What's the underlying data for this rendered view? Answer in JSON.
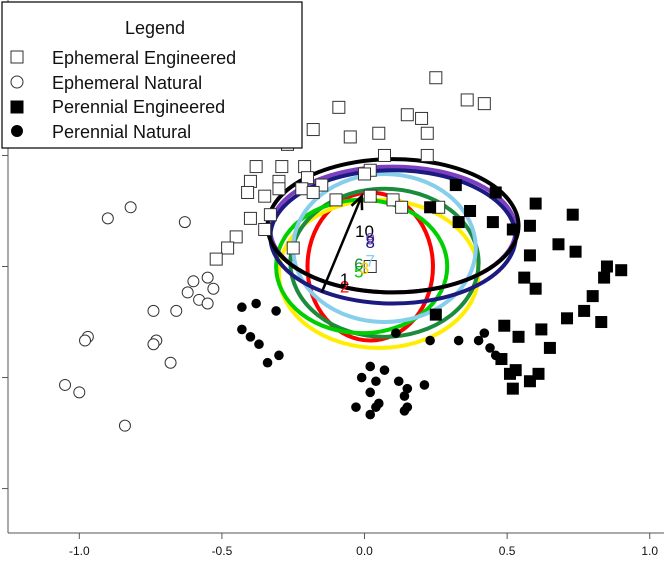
{
  "chart_data": {
    "type": "scatter",
    "title": "",
    "xlabel": "",
    "ylabel": "",
    "xlim": [
      -1.25,
      1.05
    ],
    "ylim": [
      -0.72,
      0.72
    ],
    "x_ticks": [
      -1.0,
      -0.5,
      0.0,
      0.5,
      1.0
    ],
    "x_tick_labels": [
      "-1.0",
      "-0.5",
      "0.0",
      "0.5",
      "1.0"
    ],
    "y_ticks": [
      -0.6,
      -0.3,
      0.0,
      0.3,
      0.6
    ],
    "legend": {
      "title": "Legend",
      "position": "top-left",
      "entries": [
        {
          "label": "Ephemeral Engineered",
          "marker": "open-square"
        },
        {
          "label": "Ephemeral Natural",
          "marker": "open-circle"
        },
        {
          "label": "Perennial Engineered",
          "marker": "filled-square"
        },
        {
          "label": "Perennial Natural",
          "marker": "filled-circle"
        }
      ]
    },
    "series": [
      {
        "name": "Ephemeral Engineered",
        "marker": "open-square",
        "points": [
          [
            0.25,
            0.51
          ],
          [
            0.36,
            0.45
          ],
          [
            0.42,
            0.44
          ],
          [
            -0.09,
            0.43
          ],
          [
            0.15,
            0.41
          ],
          [
            0.2,
            0.4
          ],
          [
            -0.18,
            0.37
          ],
          [
            -0.05,
            0.35
          ],
          [
            0.05,
            0.36
          ],
          [
            0.22,
            0.36
          ],
          [
            -0.27,
            0.33
          ],
          [
            0.07,
            0.3
          ],
          [
            0.22,
            0.3
          ],
          [
            -0.29,
            0.27
          ],
          [
            -0.38,
            0.27
          ],
          [
            -0.21,
            0.27
          ],
          [
            0.02,
            0.26
          ],
          [
            0.0,
            0.25
          ],
          [
            -0.4,
            0.23
          ],
          [
            -0.3,
            0.23
          ],
          [
            -0.2,
            0.24
          ],
          [
            -0.15,
            0.22
          ],
          [
            -0.41,
            0.2
          ],
          [
            -0.3,
            0.21
          ],
          [
            -0.22,
            0.21
          ],
          [
            -0.35,
            0.19
          ],
          [
            -0.18,
            0.2
          ],
          [
            0.02,
            0.19
          ],
          [
            -0.1,
            0.18
          ],
          [
            0.1,
            0.18
          ],
          [
            -0.4,
            0.13
          ],
          [
            -0.33,
            0.14
          ],
          [
            0.13,
            0.16
          ],
          [
            0.26,
            0.16
          ],
          [
            -0.45,
            0.08
          ],
          [
            -0.35,
            0.1
          ],
          [
            -0.48,
            0.05
          ],
          [
            -0.25,
            0.05
          ],
          [
            -0.52,
            0.02
          ],
          [
            0.02,
            0.0
          ]
        ]
      },
      {
        "name": "Ephemeral Natural",
        "marker": "open-circle",
        "points": [
          [
            -0.82,
            0.16
          ],
          [
            -0.9,
            0.13
          ],
          [
            -0.63,
            0.12
          ],
          [
            -0.55,
            -0.03
          ],
          [
            -0.6,
            -0.04
          ],
          [
            -0.53,
            -0.06
          ],
          [
            -0.62,
            -0.07
          ],
          [
            -0.58,
            -0.09
          ],
          [
            -0.55,
            -0.1
          ],
          [
            -0.74,
            -0.12
          ],
          [
            -0.66,
            -0.12
          ],
          [
            -0.97,
            -0.19
          ],
          [
            -0.98,
            -0.2
          ],
          [
            -0.73,
            -0.2
          ],
          [
            -0.74,
            -0.21
          ],
          [
            -0.68,
            -0.26
          ],
          [
            -1.05,
            -0.32
          ],
          [
            -1.0,
            -0.34
          ],
          [
            -0.84,
            -0.43
          ]
        ]
      },
      {
        "name": "Perennial Engineered",
        "marker": "filled-square",
        "points": [
          [
            0.32,
            0.22
          ],
          [
            0.46,
            0.2
          ],
          [
            0.6,
            0.17
          ],
          [
            0.23,
            0.16
          ],
          [
            0.37,
            0.15
          ],
          [
            0.73,
            0.14
          ],
          [
            0.33,
            0.12
          ],
          [
            0.45,
            0.12
          ],
          [
            0.58,
            0.11
          ],
          [
            0.52,
            0.1
          ],
          [
            0.68,
            0.06
          ],
          [
            0.74,
            0.04
          ],
          [
            0.58,
            0.03
          ],
          [
            0.85,
            0.0
          ],
          [
            0.9,
            -0.01
          ],
          [
            0.84,
            -0.03
          ],
          [
            0.56,
            -0.03
          ],
          [
            0.6,
            -0.06
          ],
          [
            0.8,
            -0.08
          ],
          [
            0.77,
            -0.12
          ],
          [
            0.25,
            -0.13
          ],
          [
            0.71,
            -0.14
          ],
          [
            0.83,
            -0.15
          ],
          [
            0.49,
            -0.16
          ],
          [
            0.62,
            -0.17
          ],
          [
            0.54,
            -0.19
          ],
          [
            0.65,
            -0.22
          ],
          [
            0.48,
            -0.25
          ],
          [
            0.53,
            -0.28
          ],
          [
            0.51,
            -0.29
          ],
          [
            0.58,
            -0.31
          ],
          [
            0.61,
            -0.29
          ],
          [
            0.52,
            -0.33
          ]
        ]
      },
      {
        "name": "Perennial Natural",
        "marker": "filled-circle",
        "points": [
          [
            -0.43,
            -0.11
          ],
          [
            -0.38,
            -0.1
          ],
          [
            -0.31,
            -0.12
          ],
          [
            -0.43,
            -0.17
          ],
          [
            -0.4,
            -0.19
          ],
          [
            -0.37,
            -0.21
          ],
          [
            -0.3,
            -0.24
          ],
          [
            -0.34,
            -0.26
          ],
          [
            0.11,
            -0.18
          ],
          [
            0.23,
            -0.2
          ],
          [
            0.33,
            -0.2
          ],
          [
            0.4,
            -0.2
          ],
          [
            0.42,
            -0.18
          ],
          [
            0.44,
            -0.22
          ],
          [
            0.46,
            -0.24
          ],
          [
            0.02,
            -0.27
          ],
          [
            0.07,
            -0.28
          ],
          [
            -0.01,
            -0.3
          ],
          [
            0.04,
            -0.31
          ],
          [
            0.12,
            -0.31
          ],
          [
            0.15,
            -0.33
          ],
          [
            0.21,
            -0.32
          ],
          [
            0.02,
            -0.34
          ],
          [
            0.14,
            -0.35
          ],
          [
            0.05,
            -0.37
          ],
          [
            -0.03,
            -0.38
          ],
          [
            0.04,
            -0.38
          ],
          [
            0.14,
            -0.39
          ],
          [
            0.15,
            -0.38
          ],
          [
            0.02,
            -0.4
          ]
        ]
      }
    ],
    "ellipses": [
      {
        "color": "#ff0000",
        "cx": 0.02,
        "cy": 0.0,
        "rx": 0.22,
        "ry": 0.2
      },
      {
        "color": "#ffee00",
        "cx": 0.05,
        "cy": -0.02,
        "rx": 0.35,
        "ry": 0.2
      },
      {
        "color": "#1a8c3c",
        "cx": 0.07,
        "cy": 0.01,
        "rx": 0.33,
        "ry": 0.2
      },
      {
        "color": "#00d000",
        "cx": -0.01,
        "cy": 0.0,
        "rx": 0.3,
        "ry": 0.18
      },
      {
        "color": "#87ceeb",
        "cx": 0.07,
        "cy": 0.05,
        "rx": 0.32,
        "ry": 0.2
      },
      {
        "color": "#7b3fbf",
        "cx": 0.1,
        "cy": 0.1,
        "rx": 0.43,
        "ry": 0.17
      },
      {
        "color": "#1a1a80",
        "cx": 0.1,
        "cy": 0.08,
        "rx": 0.43,
        "ry": 0.18
      },
      {
        "color": "#000000",
        "cx": 0.1,
        "cy": 0.11,
        "rx": 0.44,
        "ry": 0.18
      }
    ],
    "ellipse_labels": [
      {
        "text": "2",
        "color": "#ff0000",
        "x": -0.07,
        "y": -0.07
      },
      {
        "text": "1",
        "color": "#000000",
        "x": -0.07,
        "y": -0.05
      },
      {
        "text": "5",
        "color": "#00c000",
        "x": -0.02,
        "y": -0.03
      },
      {
        "text": "6",
        "color": "#1a8c3c",
        "x": -0.02,
        "y": -0.01
      },
      {
        "text": "3",
        "color": "#ffcc00",
        "x": 0.0,
        "y": -0.02
      },
      {
        "text": "7",
        "color": "#87ceeb",
        "x": 0.02,
        "y": 0.0
      },
      {
        "text": "10",
        "color": "#000000",
        "x": 0.0,
        "y": 0.08
      },
      {
        "text": "9",
        "color": "#7b3fbf",
        "x": 0.02,
        "y": 0.06
      },
      {
        "text": "8",
        "color": "#1a1a80",
        "x": 0.02,
        "y": 0.05
      }
    ],
    "arrow": {
      "from": [
        -0.15,
        -0.07
      ],
      "to": [
        -0.01,
        0.19
      ],
      "color": "#000000"
    }
  }
}
